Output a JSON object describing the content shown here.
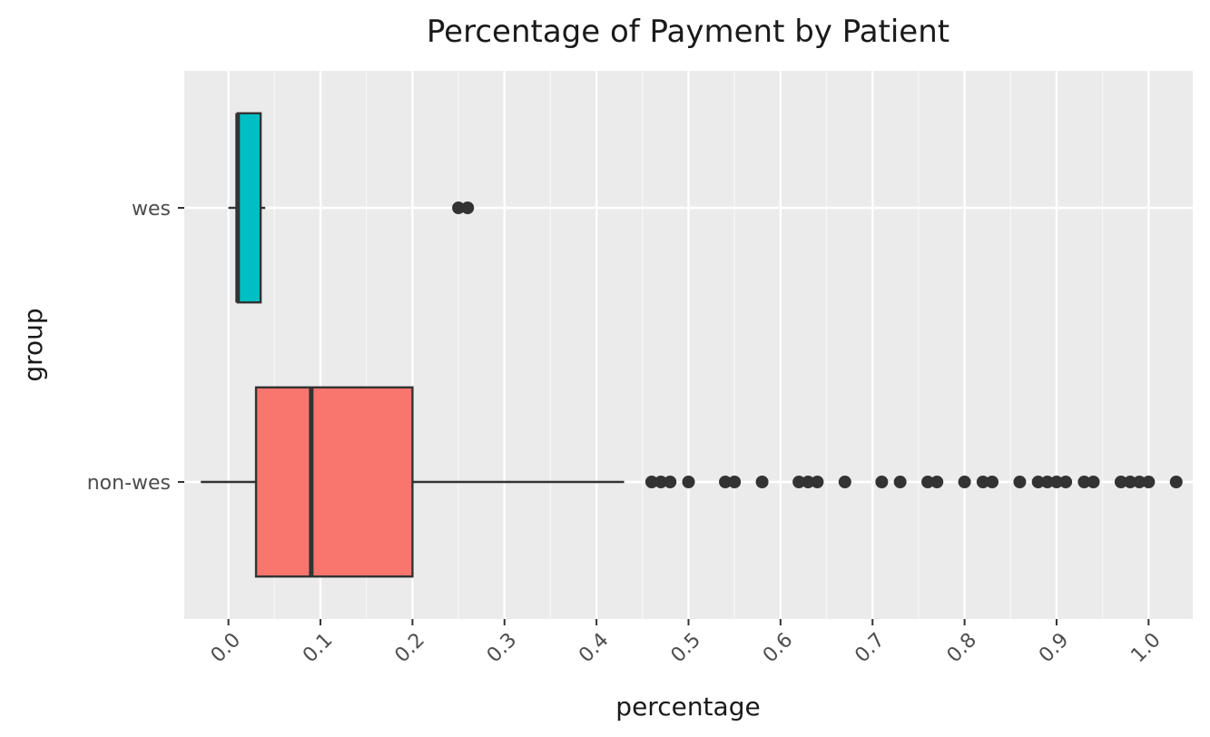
{
  "chart_data": {
    "type": "boxplot",
    "title": "Percentage of Payment by Patient",
    "xlabel": "percentage",
    "ylabel": "group",
    "xlim": [
      -0.048,
      1.048
    ],
    "x_ticks": [
      "0.0",
      "0.1",
      "0.2",
      "0.3",
      "0.4",
      "0.5",
      "0.6",
      "0.7",
      "0.8",
      "0.9",
      "1.0"
    ],
    "x_tick_values": [
      0.0,
      0.1,
      0.2,
      0.3,
      0.4,
      0.5,
      0.6,
      0.7,
      0.8,
      0.9,
      1.0
    ],
    "categories": [
      "wes",
      "non-wes"
    ],
    "grid": true,
    "legend": "none",
    "series": [
      {
        "category": "wes",
        "color": "#00BFC4",
        "whisker_low": 0.0,
        "q1": 0.01,
        "median": 0.01,
        "q3": 0.035,
        "whisker_high": 0.04,
        "outliers": [
          0.25,
          0.26
        ]
      },
      {
        "category": "non-wes",
        "color": "#F8766D",
        "whisker_low": -0.03,
        "q1": 0.03,
        "median": 0.09,
        "q3": 0.2,
        "whisker_high": 0.43,
        "outliers": [
          0.46,
          0.47,
          0.48,
          0.5,
          0.54,
          0.55,
          0.58,
          0.62,
          0.63,
          0.64,
          0.67,
          0.71,
          0.73,
          0.76,
          0.77,
          0.8,
          0.82,
          0.83,
          0.86,
          0.88,
          0.89,
          0.9,
          0.91,
          0.93,
          0.94,
          0.97,
          0.98,
          0.99,
          1.0,
          1.03
        ]
      }
    ]
  }
}
